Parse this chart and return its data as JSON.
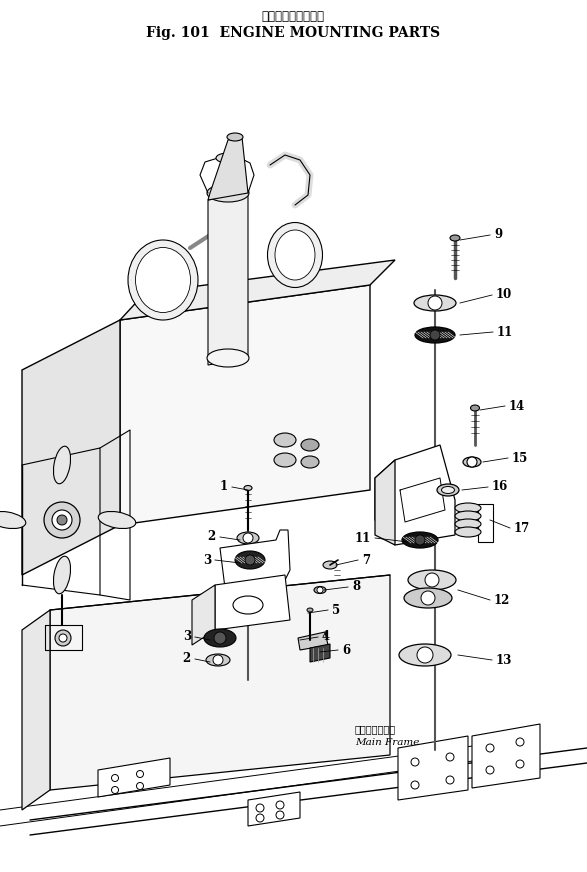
{
  "title_japanese": "エンジン　取付部品",
  "title_english": "Fig. 101  ENGINE MOUNTING PARTS",
  "bg_color": "#ffffff",
  "lc": "#000000",
  "main_frame_jp": "メインフレーム",
  "main_frame_en": "Main Frame"
}
